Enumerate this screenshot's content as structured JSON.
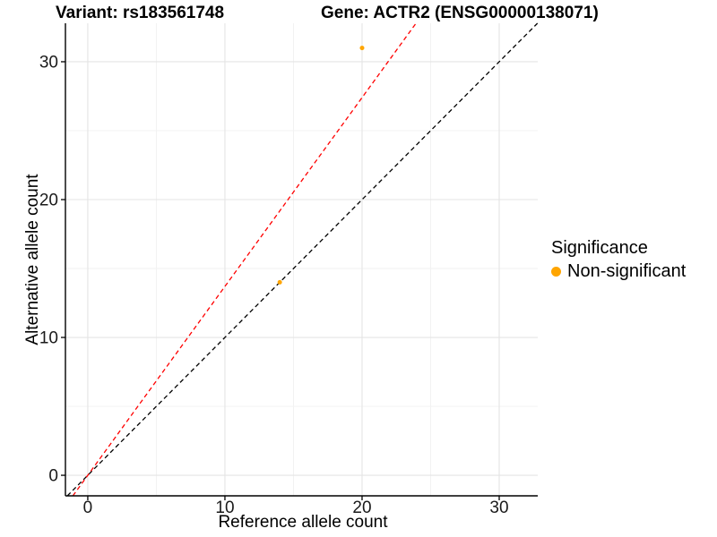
{
  "chart_data": {
    "type": "scatter",
    "title_variant": "Variant: rs183561748",
    "title_gene": "Gene: ACTR2 (ENSG00000138071)",
    "xlabel": "Reference allele count",
    "ylabel": "Alternative allele count",
    "xlim": [
      -1.63,
      32.81
    ],
    "ylim": [
      -1.49,
      32.79
    ],
    "x_ticks": [
      0,
      10,
      20,
      30
    ],
    "y_ticks": [
      0,
      10,
      20,
      30
    ],
    "x_minor_ticks": [
      5,
      15,
      25
    ],
    "y_minor_ticks": [
      5,
      15,
      25
    ],
    "grid": true,
    "legend": {
      "title": "Significance",
      "position": "right",
      "items": [
        {
          "label": "Non-significant",
          "color": "#FFA500"
        }
      ]
    },
    "series": [
      {
        "name": "Non-significant",
        "color": "#FFA500",
        "points": [
          {
            "x": 20,
            "y": 31
          },
          {
            "x": 14,
            "y": 14
          }
        ]
      }
    ],
    "lines": [
      {
        "name": "identity",
        "slope": 1.0,
        "intercept": 0,
        "color": "#000000",
        "style": "dashed"
      },
      {
        "name": "expected-ratio",
        "slope": 1.37,
        "intercept": 0,
        "color": "#FF0000",
        "style": "dashed"
      }
    ],
    "colors": {
      "point": "#FFA500",
      "identity_line": "#000000",
      "ratio_line": "#FF0000",
      "grid_major": "#E4E4E4",
      "grid_minor": "#F1F1F1",
      "axis": "#000000",
      "tick_label": "#1A1A1A",
      "background": "#FFFFFF"
    }
  }
}
